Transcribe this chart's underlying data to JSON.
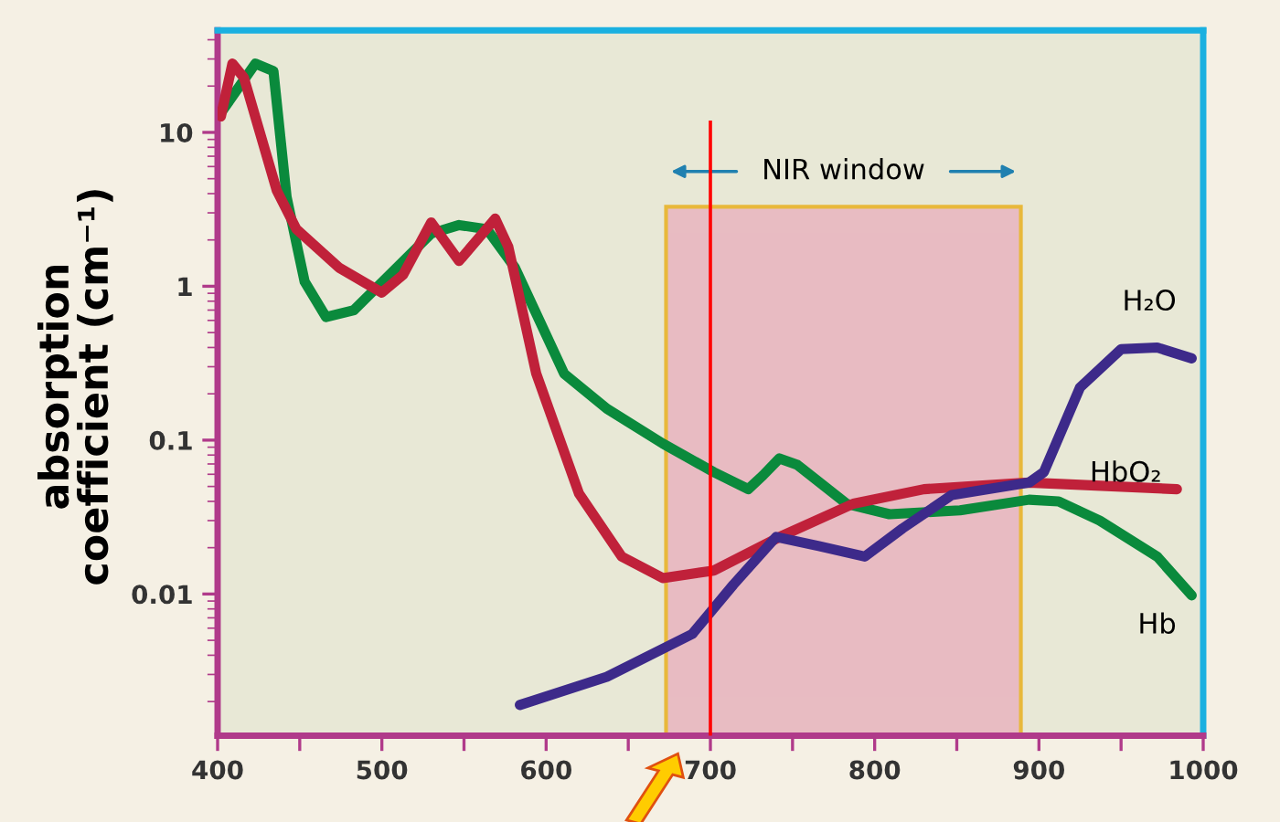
{
  "chart_data": {
    "type": "line",
    "ylabel": "absorption\ncoefficient (cm⁻¹)",
    "xlim": [
      400,
      1000
    ],
    "xticks": [
      400,
      {
        "value": 450,
        "label": null
      },
      500,
      {
        "value": 550,
        "label": null
      },
      600,
      {
        "value": 650,
        "label": null
      },
      700,
      {
        "value": 750,
        "label": null
      },
      800,
      {
        "value": 850,
        "label": null
      },
      900,
      {
        "value": 950,
        "label": null
      },
      1000
    ],
    "ylim": [
      0.0012,
      46
    ],
    "yticks": [
      10,
      1,
      0.1,
      0.01
    ],
    "log": true,
    "grid": false,
    "legend": false,
    "line_style": "solid",
    "marker": "none",
    "series": [
      {
        "name": "Hb",
        "color": "#0a8a3c",
        "x": [
          402,
          423,
          434,
          442,
          453,
          466,
          483,
          509,
          530,
          547,
          564,
          581,
          611,
          637,
          671,
          702,
          723,
          732,
          742,
          753,
          783,
          809,
          852,
          894,
          912,
          937,
          972,
          993
        ],
        "values": [
          13.4,
          28,
          25,
          3.8,
          1.07,
          0.63,
          0.7,
          1.32,
          2.2,
          2.5,
          2.35,
          1.32,
          0.27,
          0.16,
          0.095,
          0.062,
          0.048,
          0.059,
          0.076,
          0.069,
          0.0386,
          0.033,
          0.035,
          0.041,
          0.04,
          0.03,
          0.0175,
          0.0098
        ]
      },
      {
        "name": "HbO₂",
        "color": "#c0213a",
        "x": [
          402,
          409,
          416,
          436,
          448,
          474,
          500,
          513,
          530,
          547,
          569,
          577,
          594,
          620,
          646,
          671,
          702,
          744,
          787,
          830,
          894,
          984
        ],
        "values": [
          12.7,
          28,
          22.7,
          4.2,
          2.35,
          1.32,
          0.91,
          1.19,
          2.6,
          1.46,
          2.75,
          1.8,
          0.27,
          0.045,
          0.0175,
          0.0127,
          0.0142,
          0.024,
          0.0386,
          0.048,
          0.053,
          0.048
        ]
      },
      {
        "name": "H₂O",
        "color": "#3d2a8a",
        "x": [
          584,
          637,
          689,
          714,
          740,
          766,
          794,
          817,
          847,
          894,
          903,
          925,
          950,
          972,
          993
        ],
        "values": [
          0.0019,
          0.0029,
          0.0055,
          0.0115,
          0.0235,
          0.0205,
          0.0175,
          0.0267,
          0.044,
          0.053,
          0.062,
          0.22,
          0.39,
          0.4,
          0.34
        ]
      }
    ],
    "ref_lines": [
      {
        "axis": "x",
        "value": 700,
        "color": "#ff0000",
        "line_style": "solid"
      }
    ],
    "bands": [
      {
        "axis": "x",
        "from": 673,
        "to": 889,
        "label": "NIR window",
        "color": "#e8b4bf"
      }
    ]
  }
}
